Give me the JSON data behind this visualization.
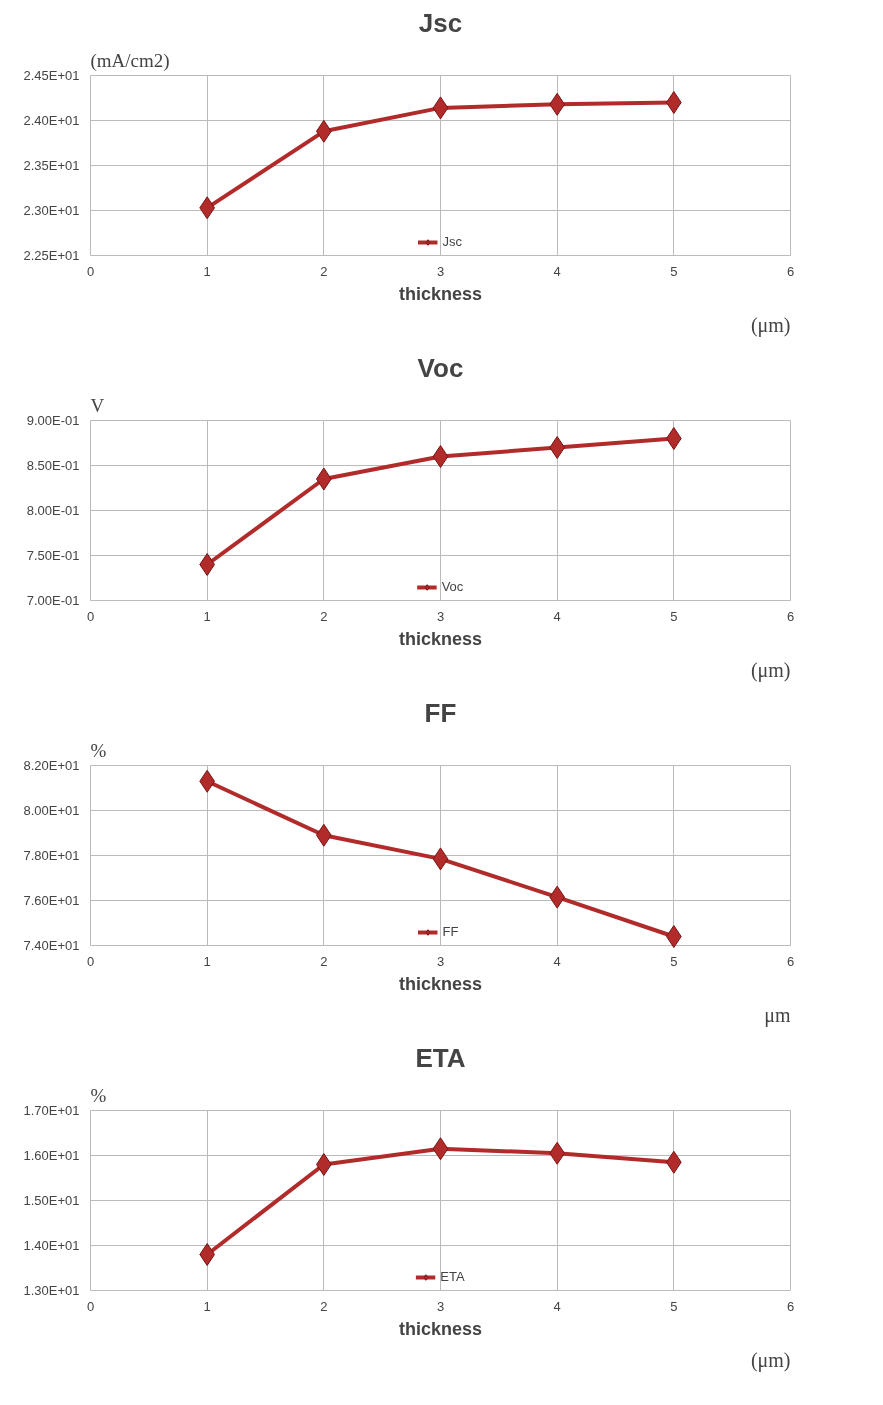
{
  "chart_data": [
    {
      "type": "line",
      "title": "Jsc",
      "ylabel": "(mA/cm2)",
      "xlabel": "thickness",
      "annotations": [
        "(μm)"
      ],
      "x": [
        1,
        2,
        3,
        4,
        5
      ],
      "series": [
        {
          "name": "Jsc",
          "color": "#b22b2b",
          "values": [
            23.03,
            23.88,
            24.14,
            24.18,
            24.2
          ]
        }
      ],
      "xlim": [
        0,
        6
      ],
      "xticks": [
        0,
        1,
        2,
        3,
        4,
        5,
        6
      ],
      "ylim": [
        22.5,
        24.5
      ],
      "yticks": [
        {
          "value": 22.5,
          "label": "2.25E+01"
        },
        {
          "value": 23.0,
          "label": "2.30E+01"
        },
        {
          "value": 23.5,
          "label": "2.35E+01"
        },
        {
          "value": 24.0,
          "label": "2.40E+01"
        },
        {
          "value": 24.5,
          "label": "2.45E+01"
        }
      ],
      "grid": true,
      "legend": "bottom",
      "marker": "diamond",
      "line_style": "solid"
    },
    {
      "type": "line",
      "title": "Voc",
      "ylabel": "V",
      "xlabel": "thickness",
      "annotations": [
        "(μm)"
      ],
      "x": [
        1,
        2,
        3,
        4,
        5
      ],
      "series": [
        {
          "name": "Voc",
          "color": "#b22b2b",
          "values": [
            0.74,
            0.835,
            0.86,
            0.87,
            0.88
          ]
        }
      ],
      "xlim": [
        0,
        6
      ],
      "xticks": [
        0,
        1,
        2,
        3,
        4,
        5,
        6
      ],
      "ylim": [
        0.7,
        0.9
      ],
      "yticks": [
        {
          "value": 0.7,
          "label": "7.00E-01"
        },
        {
          "value": 0.75,
          "label": "7.50E-01"
        },
        {
          "value": 0.8,
          "label": "8.00E-01"
        },
        {
          "value": 0.85,
          "label": "8.50E-01"
        },
        {
          "value": 0.9,
          "label": "9.00E-01"
        }
      ],
      "grid": true,
      "legend": "bottom",
      "marker": "diamond",
      "line_style": "solid"
    },
    {
      "type": "line",
      "title": "FF",
      "ylabel": "%",
      "xlabel": "thickness",
      "annotations": [
        "μm"
      ],
      "x": [
        1,
        2,
        3,
        4,
        5
      ],
      "series": [
        {
          "name": "FF",
          "color": "#b22b2b",
          "values": [
            81.3,
            78.9,
            77.85,
            76.15,
            74.4
          ]
        }
      ],
      "xlim": [
        0,
        6
      ],
      "xticks": [
        0,
        1,
        2,
        3,
        4,
        5,
        6
      ],
      "ylim": [
        74,
        82
      ],
      "yticks": [
        {
          "value": 74,
          "label": "7.40E+01"
        },
        {
          "value": 76,
          "label": "7.60E+01"
        },
        {
          "value": 78,
          "label": "7.80E+01"
        },
        {
          "value": 80,
          "label": "8.00E+01"
        },
        {
          "value": 82,
          "label": "8.20E+01"
        }
      ],
      "grid": true,
      "legend": "bottom",
      "marker": "diamond",
      "line_style": "solid"
    },
    {
      "type": "line",
      "title": "ETA",
      "ylabel": "%",
      "xlabel": "thickness",
      "annotations": [
        "(μm)"
      ],
      "x": [
        1,
        2,
        3,
        4,
        5
      ],
      "series": [
        {
          "name": "ETA",
          "color": "#b22b2b",
          "values": [
            13.8,
            15.8,
            16.15,
            16.05,
            15.85
          ]
        }
      ],
      "xlim": [
        0,
        6
      ],
      "xticks": [
        0,
        1,
        2,
        3,
        4,
        5,
        6
      ],
      "ylim": [
        13,
        17
      ],
      "yticks": [
        {
          "value": 13,
          "label": "1.30E+01"
        },
        {
          "value": 14,
          "label": "1.40E+01"
        },
        {
          "value": 15,
          "label": "1.50E+01"
        },
        {
          "value": 16,
          "label": "1.60E+01"
        },
        {
          "value": 17,
          "label": "1.70E+01"
        }
      ],
      "grid": true,
      "legend": "bottom",
      "marker": "diamond",
      "line_style": "solid"
    }
  ]
}
